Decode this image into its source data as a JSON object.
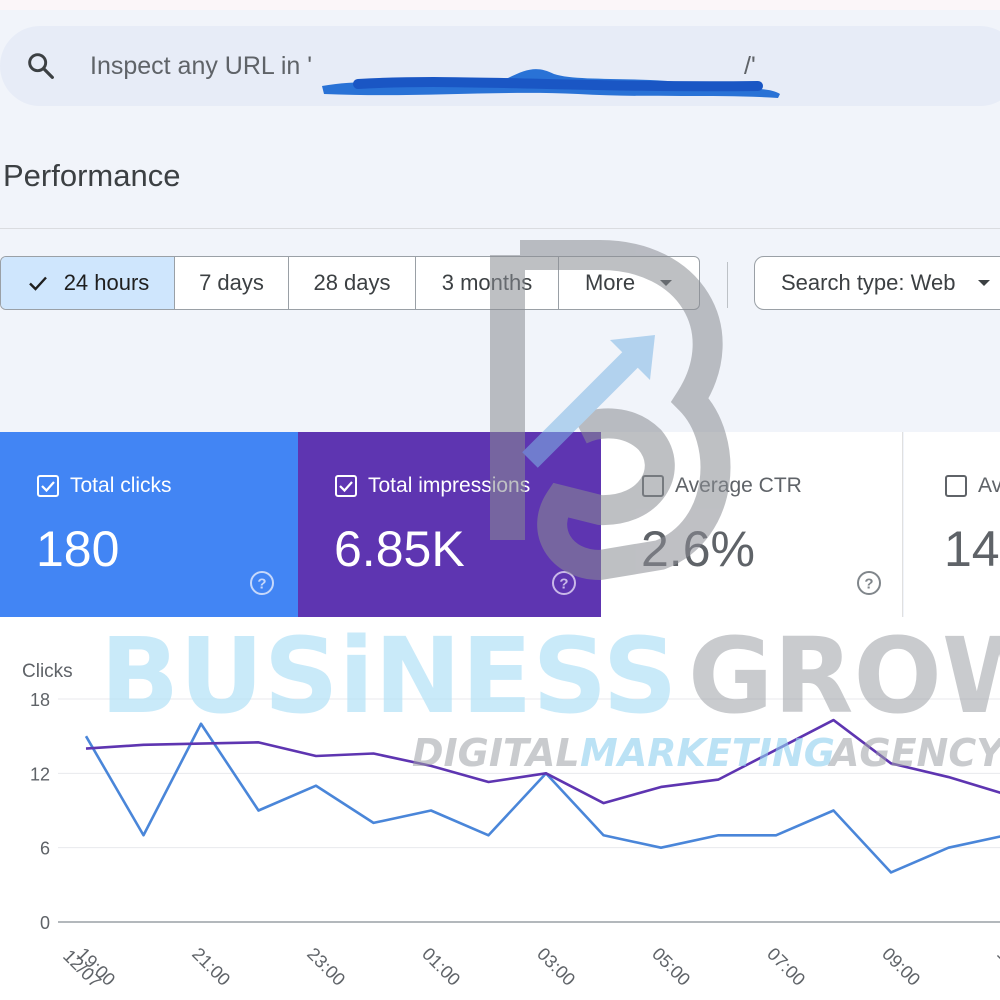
{
  "search": {
    "placeholder_prefix": "Inspect any URL in '",
    "placeholder_suffix": "/'",
    "icon": "search-icon"
  },
  "page_title": "Performance",
  "date_ranges": [
    {
      "label": "24 hours",
      "selected": true
    },
    {
      "label": "7 days",
      "selected": false
    },
    {
      "label": "28 days",
      "selected": false
    },
    {
      "label": "3 months",
      "selected": false
    },
    {
      "label": "More",
      "selected": false
    }
  ],
  "search_type": "Search type: Web",
  "metrics": [
    {
      "label": "Total clicks",
      "value": "180",
      "checked": true,
      "color": "#4285f4"
    },
    {
      "label": "Total impressions",
      "value": "6.85K",
      "checked": true,
      "color": "#5e35b1"
    },
    {
      "label": "Average CTR",
      "value": "2.6%",
      "checked": false,
      "color": "#ffffff"
    },
    {
      "label": "Av",
      "value": "14",
      "checked": false,
      "color": "#ffffff"
    }
  ],
  "watermark": {
    "line1a": "BUSiNESS",
    "line1b": "GROW",
    "line2a": "DIGITAL",
    "line2b": "MARKETING",
    "line2c": "AGENCY"
  },
  "chart_data": {
    "type": "line",
    "ylabel": "Clicks",
    "ylim": [
      0,
      18
    ],
    "yticks": [
      "18",
      "12",
      "6",
      "0"
    ],
    "x": [
      "19:00",
      "20:00",
      "21:00",
      "22:00",
      "23:00",
      "00:00",
      "01:00",
      "02:00",
      "03:00",
      "04:00",
      "05:00",
      "06:00",
      "07:00",
      "08:00",
      "09:00",
      "10:00",
      "11:00"
    ],
    "xtick_labels": [
      "19:00",
      "21:00",
      "23:00",
      "01:00",
      "03:00",
      "05:00",
      "07:00",
      "09:00",
      "1"
    ],
    "first_date_label": "12/07",
    "series": [
      {
        "name": "Total clicks",
        "color": "#4a86d9",
        "values": [
          15,
          7,
          16,
          9,
          11,
          8,
          9,
          7,
          12,
          7,
          6,
          7,
          7,
          9,
          4,
          6,
          7
        ]
      },
      {
        "name": "Total impressions",
        "color": "#5e35b1",
        "values": [
          14,
          14.3,
          14.4,
          14.5,
          13.4,
          13.6,
          12.6,
          11.3,
          12,
          9.6,
          10.9,
          11.5,
          13.9,
          16.3,
          12.8,
          11.7,
          10.3
        ]
      }
    ]
  }
}
